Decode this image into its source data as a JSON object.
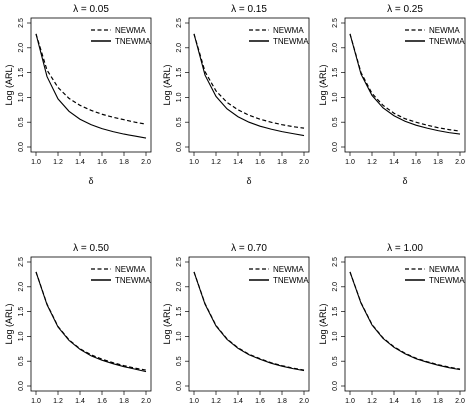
{
  "chart_data": [
    {
      "type": "line",
      "title": "λ = 0.05",
      "xlabel": "δ",
      "ylabel": "Log (ARL)",
      "xlim": [
        1.0,
        2.0
      ],
      "ylim": [
        0.0,
        2.5
      ],
      "xticks": [
        "1.0",
        "1.2",
        "1.4",
        "1.6",
        "1.8",
        "2.0"
      ],
      "yticks": [
        "0.0",
        "0.5",
        "1.0",
        "1.5",
        "2.0",
        "2.5"
      ],
      "legend_position": "top-right",
      "x": [
        1.0,
        1.1,
        1.2,
        1.3,
        1.4,
        1.5,
        1.6,
        1.7,
        1.8,
        1.9,
        2.0
      ],
      "series": [
        {
          "name": "NEWMA",
          "style": "dashed",
          "values": [
            2.28,
            1.55,
            1.2,
            0.98,
            0.84,
            0.74,
            0.66,
            0.6,
            0.55,
            0.5,
            0.46
          ]
        },
        {
          "name": "TNEWMA",
          "style": "solid",
          "values": [
            2.28,
            1.42,
            0.97,
            0.72,
            0.56,
            0.45,
            0.37,
            0.31,
            0.26,
            0.22,
            0.18
          ]
        }
      ]
    },
    {
      "type": "line",
      "title": "λ = 0.15",
      "xlabel": "δ",
      "ylabel": "Log (ARL)",
      "xlim": [
        1.0,
        2.0
      ],
      "ylim": [
        0.0,
        2.5
      ],
      "xticks": [
        "1.0",
        "1.2",
        "1.4",
        "1.6",
        "1.8",
        "2.0"
      ],
      "yticks": [
        "0.0",
        "0.5",
        "1.0",
        "1.5",
        "2.0",
        "2.5"
      ],
      "legend_position": "top-right",
      "x": [
        1.0,
        1.1,
        1.2,
        1.3,
        1.4,
        1.5,
        1.6,
        1.7,
        1.8,
        1.9,
        2.0
      ],
      "series": [
        {
          "name": "NEWMA",
          "style": "dashed",
          "values": [
            2.28,
            1.52,
            1.13,
            0.9,
            0.75,
            0.64,
            0.56,
            0.5,
            0.45,
            0.41,
            0.38
          ]
        },
        {
          "name": "TNEWMA",
          "style": "solid",
          "values": [
            2.28,
            1.45,
            1.02,
            0.77,
            0.61,
            0.5,
            0.42,
            0.36,
            0.31,
            0.27,
            0.23
          ]
        }
      ]
    },
    {
      "type": "line",
      "title": "λ = 0.25",
      "xlabel": "δ",
      "ylabel": "Log (ARL)",
      "xlim": [
        1.0,
        2.0
      ],
      "ylim": [
        0.0,
        2.5
      ],
      "xticks": [
        "1.0",
        "1.2",
        "1.4",
        "1.6",
        "1.8",
        "2.0"
      ],
      "yticks": [
        "0.0",
        "0.5",
        "1.0",
        "1.5",
        "2.0",
        "2.5"
      ],
      "legend_position": "top-right",
      "x": [
        1.0,
        1.1,
        1.2,
        1.3,
        1.4,
        1.5,
        1.6,
        1.7,
        1.8,
        1.9,
        2.0
      ],
      "series": [
        {
          "name": "NEWMA",
          "style": "dashed",
          "values": [
            2.28,
            1.5,
            1.08,
            0.84,
            0.68,
            0.57,
            0.5,
            0.44,
            0.39,
            0.35,
            0.32
          ]
        },
        {
          "name": "TNEWMA",
          "style": "solid",
          "values": [
            2.28,
            1.47,
            1.04,
            0.79,
            0.63,
            0.52,
            0.44,
            0.38,
            0.33,
            0.29,
            0.26
          ]
        }
      ]
    },
    {
      "type": "line",
      "title": "λ = 0.50",
      "xlabel": "δ",
      "ylabel": "Log (ARL)",
      "xlim": [
        1.0,
        2.0
      ],
      "ylim": [
        0.0,
        2.5
      ],
      "xticks": [
        "1.0",
        "1.2",
        "1.4",
        "1.6",
        "1.8",
        "2.0"
      ],
      "yticks": [
        "0.0",
        "0.5",
        "1.0",
        "1.5",
        "2.0",
        "2.5"
      ],
      "legend_position": "top-right",
      "x": [
        1.0,
        1.1,
        1.2,
        1.3,
        1.4,
        1.5,
        1.6,
        1.7,
        1.8,
        1.9,
        2.0
      ],
      "series": [
        {
          "name": "NEWMA",
          "style": "dashed",
          "values": [
            2.3,
            1.65,
            1.2,
            0.93,
            0.75,
            0.63,
            0.54,
            0.47,
            0.41,
            0.36,
            0.32
          ]
        },
        {
          "name": "TNEWMA",
          "style": "solid",
          "values": [
            2.3,
            1.64,
            1.19,
            0.92,
            0.74,
            0.61,
            0.52,
            0.45,
            0.39,
            0.34,
            0.29
          ]
        }
      ]
    },
    {
      "type": "line",
      "title": "λ = 0.70",
      "xlabel": "δ",
      "ylabel": "Log (ARL)",
      "xlim": [
        1.0,
        2.0
      ],
      "ylim": [
        0.0,
        2.5
      ],
      "xticks": [
        "1.0",
        "1.2",
        "1.4",
        "1.6",
        "1.8",
        "2.0"
      ],
      "yticks": [
        "0.0",
        "0.5",
        "1.0",
        "1.5",
        "2.0",
        "2.5"
      ],
      "legend_position": "top-right",
      "x": [
        1.0,
        1.1,
        1.2,
        1.3,
        1.4,
        1.5,
        1.6,
        1.7,
        1.8,
        1.9,
        2.0
      ],
      "series": [
        {
          "name": "NEWMA",
          "style": "dashed",
          "values": [
            2.3,
            1.66,
            1.22,
            0.95,
            0.77,
            0.64,
            0.55,
            0.47,
            0.41,
            0.36,
            0.32
          ]
        },
        {
          "name": "TNEWMA",
          "style": "solid",
          "values": [
            2.3,
            1.65,
            1.21,
            0.94,
            0.76,
            0.63,
            0.54,
            0.46,
            0.4,
            0.35,
            0.31
          ]
        }
      ]
    },
    {
      "type": "line",
      "title": "λ = 1.00",
      "xlabel": "δ",
      "ylabel": "Log (ARL)",
      "xlim": [
        1.0,
        2.0
      ],
      "ylim": [
        0.0,
        2.5
      ],
      "xticks": [
        "1.0",
        "1.2",
        "1.4",
        "1.6",
        "1.8",
        "2.0"
      ],
      "yticks": [
        "0.0",
        "0.5",
        "1.0",
        "1.5",
        "2.0",
        "2.5"
      ],
      "legend_position": "top-right",
      "x": [
        1.0,
        1.1,
        1.2,
        1.3,
        1.4,
        1.5,
        1.6,
        1.7,
        1.8,
        1.9,
        2.0
      ],
      "series": [
        {
          "name": "NEWMA",
          "style": "dashed",
          "values": [
            2.3,
            1.68,
            1.24,
            0.97,
            0.79,
            0.66,
            0.56,
            0.49,
            0.43,
            0.38,
            0.34
          ]
        },
        {
          "name": "TNEWMA",
          "style": "solid",
          "values": [
            2.3,
            1.67,
            1.23,
            0.96,
            0.78,
            0.65,
            0.55,
            0.48,
            0.42,
            0.37,
            0.33
          ]
        }
      ]
    }
  ]
}
